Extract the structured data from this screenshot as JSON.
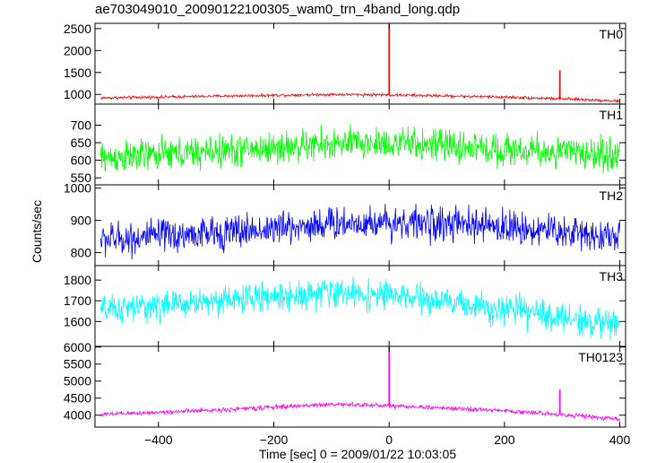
{
  "title": "ae703049010_20090122100305_wam0_trn_4band_long.qdp",
  "ylabel": "Counts/sec",
  "xlabel": "Time [sec] 0 = 2009/01/22 10:03:05",
  "chart_data": {
    "type": "line",
    "title": "ae703049010_20090122100305_wam0_trn_4band_long.qdp",
    "xlabel": "Time [sec] 0 = 2009/01/22 10:03:05",
    "ylabel": "Counts/sec",
    "xlim": [
      -510,
      410
    ],
    "x_ticks": [
      -400,
      -200,
      0,
      200,
      400
    ],
    "x_tick_labels": [
      "−400",
      "−200",
      "0",
      "200",
      "400"
    ],
    "grid": false,
    "panels": [
      {
        "name": "TH0",
        "color": "#ff0000",
        "ylim": [
          780,
          2620
        ],
        "y_ticks": [
          1000,
          1500,
          2000,
          2500
        ],
        "y_tick_labels": [
          "1000",
          "1500",
          "2000",
          "2500"
        ],
        "baseline": [
          [
            -500,
            920
          ],
          [
            -300,
            960
          ],
          [
            -100,
            1000
          ],
          [
            0,
            990
          ],
          [
            200,
            940
          ],
          [
            300,
            900
          ],
          [
            400,
            850
          ]
        ],
        "noise": 28,
        "spikes": [
          [
            0,
            2600
          ],
          [
            296,
            1550
          ]
        ]
      },
      {
        "name": "TH1",
        "color": "#00ff00",
        "ylim": [
          530,
          760
        ],
        "y_ticks": [
          550,
          600,
          650,
          700
        ],
        "y_tick_labels": [
          "550",
          "600",
          "650",
          "700"
        ],
        "baseline": [
          [
            -500,
            605
          ],
          [
            -300,
            625
          ],
          [
            -100,
            645
          ],
          [
            0,
            650
          ],
          [
            200,
            630
          ],
          [
            400,
            615
          ]
        ],
        "noise": 40,
        "spikes": []
      },
      {
        "name": "TH2",
        "color": "#0000ff",
        "ylim": [
          760,
          1010
        ],
        "y_ticks": [
          800,
          900,
          1000
        ],
        "y_tick_labels": [
          "800",
          "900",
          "1000"
        ],
        "baseline": [
          [
            -500,
            840
          ],
          [
            -300,
            860
          ],
          [
            -100,
            890
          ],
          [
            0,
            895
          ],
          [
            200,
            880
          ],
          [
            400,
            850
          ]
        ],
        "noise": 45,
        "spikes": []
      },
      {
        "name": "TH3",
        "color": "#00ffff",
        "ylim": [
          1480,
          1870
        ],
        "y_ticks": [
          1600,
          1700,
          1800
        ],
        "y_tick_labels": [
          "1600",
          "1700",
          "1800"
        ],
        "baseline": [
          [
            -500,
            1650
          ],
          [
            -300,
            1700
          ],
          [
            -100,
            1740
          ],
          [
            0,
            1725
          ],
          [
            200,
            1660
          ],
          [
            400,
            1580
          ]
        ],
        "noise": 60,
        "spikes": []
      },
      {
        "name": "TH0123",
        "color": "#ff00ff",
        "ylim": [
          3650,
          6020
        ],
        "y_ticks": [
          4000,
          4500,
          5000,
          5500,
          6000
        ],
        "y_tick_labels": [
          "4000",
          "4500",
          "5000",
          "5500",
          "6000"
        ],
        "baseline": [
          [
            -500,
            4020
          ],
          [
            -300,
            4150
          ],
          [
            -100,
            4320
          ],
          [
            0,
            4280
          ],
          [
            200,
            4130
          ],
          [
            300,
            4020
          ],
          [
            400,
            3880
          ]
        ],
        "noise": 55,
        "spikes": [
          [
            0,
            6000
          ],
          [
            296,
            4750
          ]
        ]
      }
    ]
  }
}
